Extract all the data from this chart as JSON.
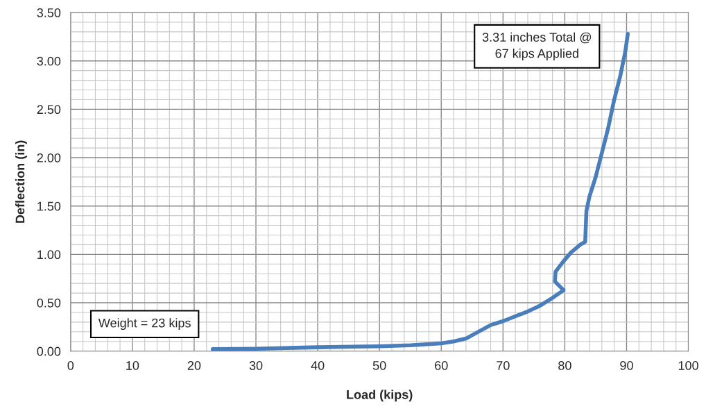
{
  "chart_data": {
    "type": "line",
    "xlabel": "Load (kips)",
    "ylabel": "Deflection (in)",
    "xlim": [
      0,
      100
    ],
    "xticks": [
      0,
      10,
      20,
      30,
      40,
      50,
      60,
      70,
      80,
      90,
      100
    ],
    "ylim": [
      0,
      3.5
    ],
    "yticks": [
      {
        "value": 0,
        "label": "0.00"
      },
      {
        "value": 0.5,
        "label": "0.50"
      },
      {
        "value": 1,
        "label": "1.00"
      },
      {
        "value": 1.5,
        "label": "1.50"
      },
      {
        "value": 2,
        "label": "2.00"
      },
      {
        "value": 2.5,
        "label": "2.50"
      },
      {
        "value": 3,
        "label": "3.00"
      },
      {
        "value": 3.5,
        "label": "3.50"
      }
    ],
    "grid": true,
    "legend": false,
    "marker": "none",
    "line_style": "solid",
    "series": [
      {
        "color": "#4a7ebb",
        "x": [
          23,
          30,
          40,
          50,
          55,
          60,
          62,
          64,
          66,
          68,
          70,
          72,
          74,
          76,
          78,
          79.8,
          78.4,
          78.5,
          79.8,
          81,
          82.5,
          83.3,
          83.5,
          84,
          85,
          86,
          87,
          88,
          89,
          89.8,
          90.2
        ],
        "values": [
          0.02,
          0.025,
          0.04,
          0.05,
          0.06,
          0.08,
          0.1,
          0.13,
          0.2,
          0.27,
          0.31,
          0.36,
          0.41,
          0.47,
          0.55,
          0.63,
          0.72,
          0.82,
          0.93,
          1.02,
          1.1,
          1.13,
          1.45,
          1.6,
          1.8,
          2.05,
          2.3,
          2.6,
          2.85,
          3.1,
          3.28
        ]
      }
    ],
    "annotations": [
      "3.31 inches Total @\n67 kips Applied",
      "Weight = 23 kips"
    ]
  }
}
